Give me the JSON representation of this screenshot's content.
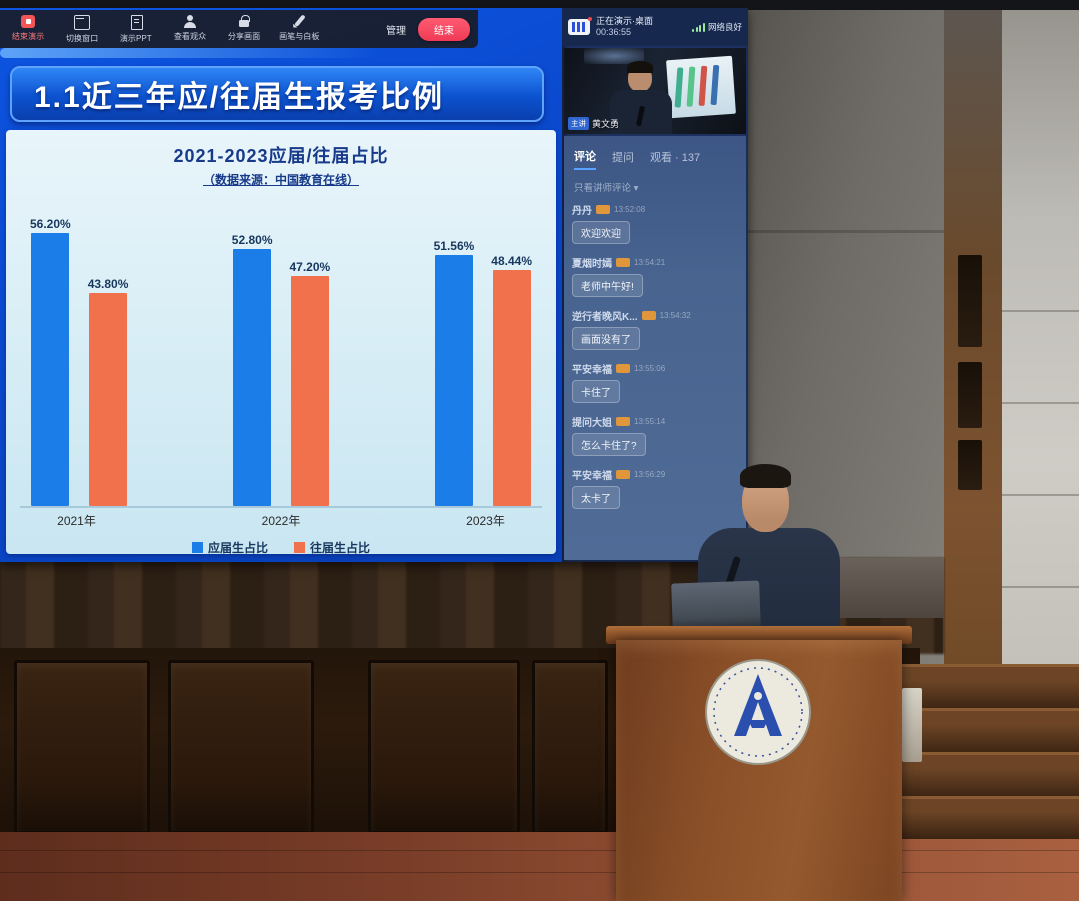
{
  "toolbar": {
    "items": [
      {
        "label": "结束演示",
        "icon": "stop",
        "accent": true
      },
      {
        "label": "切换窗口",
        "icon": "window",
        "accent": false
      },
      {
        "label": "演示PPT",
        "icon": "doc",
        "accent": false
      },
      {
        "label": "查看观众",
        "icon": "person",
        "accent": false
      },
      {
        "label": "分享画面",
        "icon": "lock",
        "accent": false
      },
      {
        "label": "画笔与白板",
        "icon": "pen",
        "accent": false
      }
    ],
    "manage_label": "管理",
    "end_button_label": "结束"
  },
  "slide": {
    "title": "1.1近三年应/往届生报考比例"
  },
  "chart_data": {
    "type": "bar",
    "title": "2021-2023应届/往届占比",
    "subtitle": "（数据来源：中国教育在线）",
    "categories": [
      "2021年",
      "2022年",
      "2023年"
    ],
    "series": [
      {
        "name": "应届生占比",
        "color": "#1b7de8",
        "values": [
          56.2,
          52.8,
          51.56
        ]
      },
      {
        "name": "往届生占比",
        "color": "#f0714b",
        "values": [
          43.8,
          47.2,
          48.44
        ]
      }
    ],
    "value_label_format": "percent2",
    "ylim": [
      0,
      60
    ],
    "grid": false,
    "legend_position": "bottom"
  },
  "stream_panel": {
    "header": {
      "status": "正在演示·桌面",
      "timer": "00:36:55",
      "network": "网络良好"
    },
    "video": {
      "speaker_badge": "主讲",
      "speaker_name": "黄文勇"
    },
    "tabs": [
      {
        "label": "评论",
        "active": true
      },
      {
        "label": "提问",
        "active": false
      },
      {
        "label": "观看 · 137",
        "active": false
      }
    ],
    "filter": "只看讲师评论 ▾",
    "messages": [
      {
        "user": "丹丹",
        "time": "13:52:08",
        "text": "欢迎欢迎"
      },
      {
        "user": "夏烟时嫣",
        "time": "13:54:21",
        "text": "老师中午好!"
      },
      {
        "user": "逆行者晚风K...",
        "time": "13:54:32",
        "text": "画面没有了"
      },
      {
        "user": "平安幸福",
        "time": "13:55:06",
        "text": "卡住了"
      },
      {
        "user": "提问大姐",
        "time": "13:55:14",
        "text": "怎么卡住了?"
      },
      {
        "user": "平安幸福",
        "time": "13:56:29",
        "text": "太卡了"
      }
    ]
  },
  "colors": {
    "screen_blue": "#0a46c8",
    "title_banner_blue": "#0c52cf",
    "chart_bg": "#d5ecf5",
    "bar_blue": "#1b7de8",
    "bar_orange": "#f0714b",
    "sidebar_navy": "#1d3160",
    "chat_slate": "#48648f",
    "end_button_red": "#ef3a55"
  }
}
